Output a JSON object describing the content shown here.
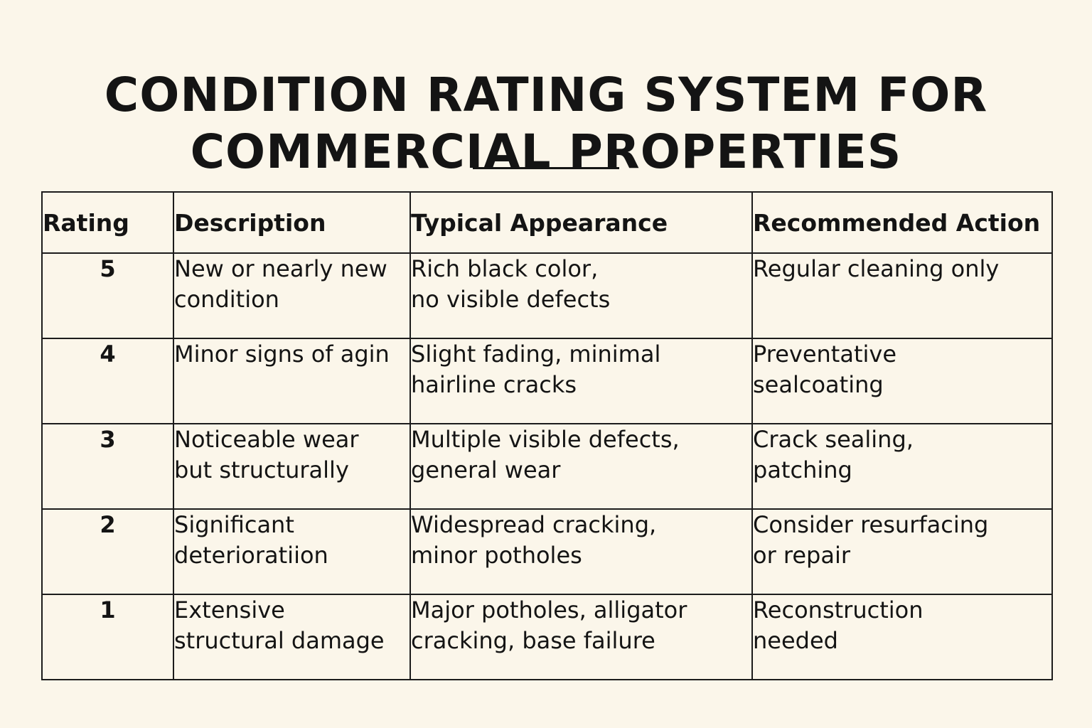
{
  "title": {
    "line1": "CONDITION RATING SYSTEM FOR",
    "line2": "COMMERCIAL PROPERTIES"
  },
  "table": {
    "headers": {
      "rating": "Rating",
      "description": "Description",
      "appearance": "Typical Appearance",
      "action": "Recommended Action"
    },
    "rows": [
      {
        "rating": "5",
        "description": "New or nearly new\ncondition",
        "appearance": "Rich black color,\nno visible defects",
        "action": "Regular cleaning only"
      },
      {
        "rating": "4",
        "description": "Minor signs of agin",
        "appearance": "Slight fading, minimal\nhairline cracks",
        "action": "Preventative\nsealcoating"
      },
      {
        "rating": "3",
        "description": "Noticeable wear\nbut structurally",
        "appearance": "Multiple visible defects,\ngeneral wear",
        "action": "Crack sealing,\npatching"
      },
      {
        "rating": "2",
        "description": "Significant\ndeterioratiion",
        "appearance": "Widespread cracking,\nminor potholes",
        "action": "Consider resurfacing\nor repair"
      },
      {
        "rating": "1",
        "description": "Extensive\nstructural damage",
        "appearance": "Major potholes, alligator\ncracking, base failure",
        "action": "Reconstruction\nneeded"
      }
    ]
  }
}
